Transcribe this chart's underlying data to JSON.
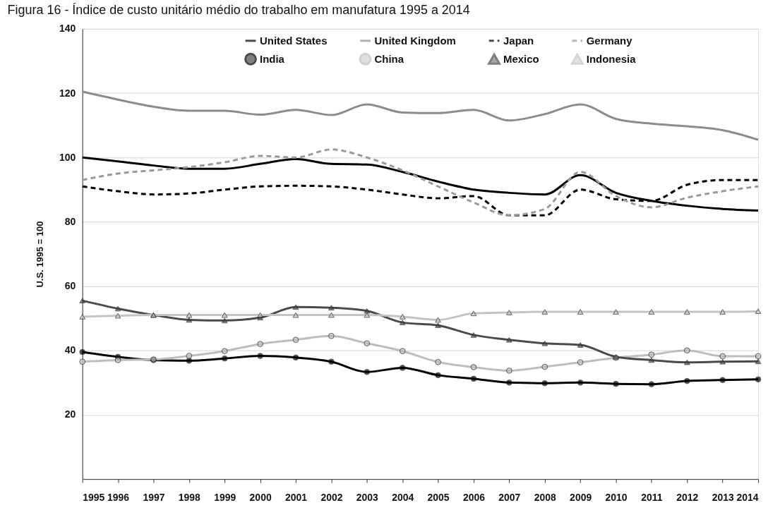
{
  "chart_data": {
    "type": "line",
    "title": "Figura 16 - Índice de custo unitário médio do trabalho em manufatura 1995 a 2014",
    "ylabel": "U.S. 1995 = 100",
    "x": [
      1995,
      1996,
      1997,
      1998,
      1999,
      2000,
      2001,
      2002,
      2003,
      2004,
      2005,
      2006,
      2007,
      2008,
      2009,
      2010,
      2011,
      2012,
      2013,
      2014
    ],
    "xlim": [
      1995,
      2014
    ],
    "xticks": [
      1995,
      1996,
      1997,
      1998,
      1999,
      2000,
      2001,
      2002,
      2003,
      2004,
      2005,
      2006,
      2007,
      2008,
      2009,
      2010,
      2011,
      2012,
      2013,
      2014
    ],
    "ylim": [
      0,
      140
    ],
    "yticks": [
      20,
      40,
      60,
      80,
      100,
      120,
      140
    ],
    "grid": "y",
    "legend": "top",
    "series": [
      {
        "name": "United States",
        "color": "#000000",
        "line_style": "solid",
        "marker": "none",
        "values": [
          100,
          98.8,
          97.5,
          96.5,
          96.5,
          98,
          99.5,
          98,
          97.8,
          95.5,
          92.5,
          90,
          89,
          88.5,
          94.5,
          89,
          86.5,
          85,
          84,
          83.5
        ]
      },
      {
        "name": "United Kingdom",
        "color": "#8c8c8c",
        "line_style": "solid",
        "marker": "none",
        "values": [
          120.5,
          118,
          115.8,
          114.5,
          114.5,
          113.3,
          114.8,
          113.2,
          116.5,
          114,
          113.8,
          114.8,
          111.5,
          113.5,
          116.5,
          112,
          110.5,
          109.7,
          108.5,
          105.5
        ]
      },
      {
        "name": "Japan",
        "color": "#000000",
        "line_style": "dashed",
        "marker": "none",
        "values": [
          91,
          89.5,
          88.5,
          88.8,
          90,
          91,
          91.2,
          91,
          90,
          88.5,
          87.3,
          88,
          82,
          82,
          90,
          87,
          86.5,
          91.5,
          93,
          93
        ]
      },
      {
        "name": "Germany",
        "color": "#9a9a9a",
        "line_style": "dashed",
        "marker": "none",
        "values": [
          93,
          95,
          96,
          97,
          98.5,
          100.5,
          100,
          102.5,
          100,
          96,
          91,
          86,
          82,
          84,
          95.5,
          88,
          84.5,
          87.5,
          89.5,
          91
        ]
      },
      {
        "name": "India",
        "color": "#000000",
        "line_style": "solid",
        "marker": "circle",
        "values": [
          39.5,
          38,
          37,
          36.8,
          37.5,
          38.3,
          37.8,
          36.5,
          33.3,
          34.6,
          32.3,
          31.2,
          30,
          29.8,
          30,
          29.6,
          29.5,
          30.5,
          30.8,
          31
        ]
      },
      {
        "name": "China",
        "color": "#bdbdbd",
        "line_style": "solid",
        "marker": "circle",
        "values": [
          36.5,
          37,
          37.2,
          38.3,
          39.8,
          42,
          43.3,
          44.5,
          42.2,
          39.8,
          36.4,
          34.8,
          33.7,
          34.9,
          36.3,
          37.7,
          38.7,
          40,
          38.2,
          38.2
        ]
      },
      {
        "name": "Mexico",
        "color": "#4a4a4a",
        "line_style": "solid",
        "marker": "triangle",
        "values": [
          55.5,
          53,
          51,
          49.5,
          49.3,
          50.2,
          53.5,
          53.3,
          52.3,
          48.7,
          47.8,
          44.8,
          43.3,
          42.2,
          41.7,
          38,
          37,
          36.3,
          36.5,
          36.6
        ]
      },
      {
        "name": "Indonesia",
        "color": "#c4c4c4",
        "line_style": "solid",
        "marker": "triangle",
        "values": [
          50.5,
          50.8,
          51,
          51,
          51,
          51,
          51,
          51,
          51,
          50.5,
          49.5,
          51.5,
          51.8,
          52,
          52,
          52,
          52,
          52,
          52,
          52.2
        ]
      }
    ]
  }
}
